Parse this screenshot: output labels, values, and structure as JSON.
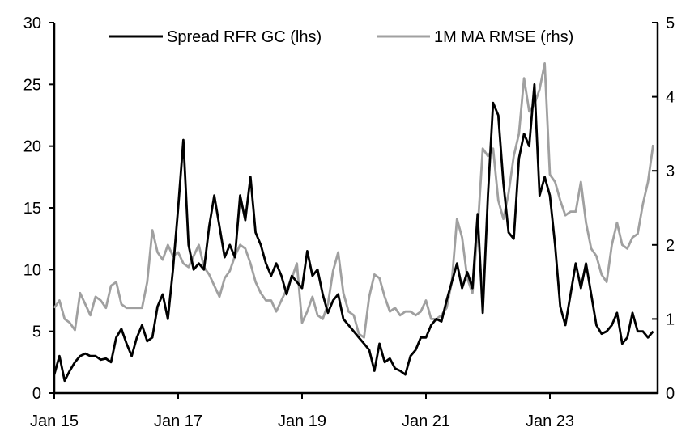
{
  "chart_data": {
    "type": "line",
    "title": "",
    "xlabel": "",
    "ylabel": "",
    "y2label": "",
    "ylim": [
      0,
      30
    ],
    "y2lim": [
      0,
      5
    ],
    "yticks": [
      "0",
      "5",
      "10",
      "15",
      "20",
      "25",
      "30"
    ],
    "y2ticks": [
      "0",
      "1",
      "2",
      "3",
      "4",
      "5"
    ],
    "xtick_labels": [
      "Jan 15",
      "Jan 17",
      "Jan 19",
      "Jan 21",
      "Jan 23"
    ],
    "xtick_dates": [
      "2015-01",
      "2017-01",
      "2019-01",
      "2021-01",
      "2023-01"
    ],
    "xlim": [
      "2015-01",
      "2024-10"
    ],
    "grid": false,
    "legend_position": "top",
    "start": "2015-01",
    "series": [
      {
        "name": "Spread RFR GC (lhs)",
        "axis": "left",
        "color": "#000000",
        "values": [
          1.5,
          3,
          1,
          1.8,
          2.5,
          3,
          3.2,
          3,
          3,
          2.7,
          2.8,
          2.5,
          4.5,
          5.2,
          4,
          3,
          4.5,
          5.5,
          4.2,
          4.5,
          7,
          8,
          6,
          10,
          15,
          20.5,
          12,
          10,
          10.5,
          10,
          13.5,
          16,
          13.5,
          11,
          12,
          11,
          16,
          14,
          17.5,
          13,
          12,
          10.5,
          9.5,
          10.5,
          9.5,
          8,
          9.5,
          9,
          8.5,
          11.5,
          9.5,
          10,
          8,
          6.5,
          7.5,
          8,
          6,
          5.5,
          5,
          4.5,
          4,
          3.5,
          1.8,
          4,
          2.5,
          2.8,
          2,
          1.8,
          1.5,
          3,
          3.5,
          4.5,
          4.5,
          5.5,
          6,
          5.8,
          7.5,
          9,
          10.5,
          8.5,
          9.8,
          8.5,
          14.5,
          6.5,
          16,
          23.5,
          22.5,
          17,
          13,
          12.5,
          19,
          21,
          20,
          25,
          16,
          17.5,
          16,
          12,
          7,
          5.5,
          8,
          10.5,
          8.5,
          10.5,
          8,
          5.5,
          4.8,
          5,
          5.5,
          6.5,
          4,
          4.5,
          6.5,
          5,
          5,
          4.5,
          5
        ]
      },
      {
        "name": "1M MA RMSE (rhs)",
        "axis": "right",
        "color": "#a0a0a0",
        "values": [
          1.15,
          1.25,
          1.0,
          0.95,
          0.85,
          1.35,
          1.2,
          1.05,
          1.3,
          1.25,
          1.15,
          1.45,
          1.5,
          1.2,
          1.15,
          1.15,
          1.15,
          1.15,
          1.5,
          2.2,
          1.9,
          1.8,
          2.0,
          1.85,
          1.9,
          1.75,
          1.7,
          1.85,
          2.0,
          1.7,
          1.6,
          1.45,
          1.3,
          1.55,
          1.65,
          1.85,
          2.0,
          1.95,
          1.75,
          1.5,
          1.35,
          1.25,
          1.25,
          1.1,
          1.25,
          1.4,
          1.55,
          1.75,
          0.95,
          1.1,
          1.3,
          1.05,
          1.0,
          1.2,
          1.65,
          1.9,
          1.35,
          1.1,
          1.05,
          0.8,
          0.75,
          1.3,
          1.6,
          1.55,
          1.3,
          1.1,
          1.15,
          1.05,
          1.1,
          1.1,
          1.05,
          1.1,
          1.25,
          1.0,
          1.0,
          1.05,
          1.15,
          1.5,
          2.35,
          2.1,
          1.55,
          1.35,
          2.2,
          3.3,
          3.2,
          3.3,
          2.6,
          2.35,
          2.7,
          3.2,
          3.5,
          4.25,
          3.8,
          3.9,
          4.1,
          4.45,
          2.95,
          2.85,
          2.6,
          2.4,
          2.45,
          2.45,
          2.85,
          2.3,
          1.95,
          1.85,
          1.6,
          1.5,
          2.0,
          2.3,
          2.0,
          1.95,
          2.1,
          2.15,
          2.55,
          2.85,
          3.35
        ]
      }
    ]
  }
}
